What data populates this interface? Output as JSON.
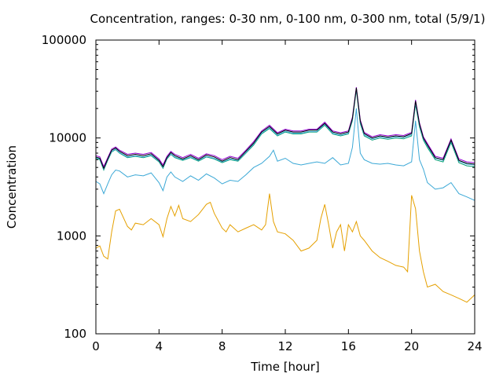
{
  "chart_data": {
    "type": "line",
    "title": "Concentration, ranges: 0-30 nm, 0-100 nm, 0-300 nm, total (5/9/1)",
    "xlabel": "Time [hour]",
    "ylabel": "Concentration",
    "xlim": [
      0,
      24
    ],
    "ylim": [
      100,
      100000
    ],
    "yscale": "log",
    "grid": false,
    "legend": "none",
    "xticks": [
      0,
      4,
      8,
      12,
      16,
      20,
      24
    ],
    "xtick_labels": [
      "0",
      "4",
      "8",
      "12",
      "16",
      "20",
      "24"
    ],
    "yticks": [
      100,
      1000,
      10000,
      100000
    ],
    "ytick_labels": [
      "100",
      "1000",
      "10000",
      "100000"
    ],
    "series": [
      {
        "color": "#e5a000",
        "x": [
          0,
          0.25,
          0.5,
          0.75,
          1.0,
          1.25,
          1.5,
          2.0,
          2.25,
          2.5,
          3.0,
          3.5,
          4.0,
          4.25,
          4.5,
          4.75,
          5.0,
          5.25,
          5.5,
          6.0,
          6.5,
          7.0,
          7.25,
          7.5,
          8.0,
          8.25,
          8.5,
          9.0,
          9.5,
          10.0,
          10.5,
          10.75,
          11.0,
          11.25,
          11.5,
          12.0,
          12.5,
          13.0,
          13.5,
          14.0,
          14.25,
          14.5,
          14.75,
          15.0,
          15.25,
          15.5,
          15.75,
          16.0,
          16.25,
          16.5,
          16.75,
          17.0,
          17.5,
          18.0,
          18.5,
          19.0,
          19.5,
          19.75,
          20.0,
          20.25,
          20.5,
          20.75,
          21.0,
          21.5,
          22.0,
          22.5,
          23.0,
          23.5,
          24.0
        ],
        "values": [
          750,
          790,
          620,
          580,
          1100,
          1800,
          1870,
          1250,
          1150,
          1350,
          1300,
          1500,
          1300,
          980,
          1500,
          2000,
          1600,
          2050,
          1500,
          1400,
          1650,
          2100,
          2200,
          1700,
          1200,
          1100,
          1300,
          1100,
          1200,
          1300,
          1150,
          1300,
          2700,
          1400,
          1100,
          1050,
          900,
          700,
          750,
          900,
          1500,
          2100,
          1300,
          750,
          1100,
          1300,
          700,
          1300,
          1100,
          1400,
          1000,
          900,
          700,
          600,
          550,
          500,
          480,
          430,
          2600,
          1900,
          700,
          430,
          300,
          320,
          270,
          250,
          230,
          210,
          250
        ]
      },
      {
        "color": "#3ba8d6",
        "x": [
          0,
          0.25,
          0.5,
          0.75,
          1.0,
          1.25,
          1.5,
          2.0,
          2.5,
          3.0,
          3.5,
          4.0,
          4.25,
          4.5,
          4.75,
          5.0,
          5.5,
          6.0,
          6.5,
          7.0,
          7.5,
          8.0,
          8.5,
          9.0,
          9.5,
          10.0,
          10.5,
          11.0,
          11.25,
          11.5,
          12.0,
          12.5,
          13.0,
          13.5,
          14.0,
          14.5,
          15.0,
          15.5,
          16.0,
          16.25,
          16.5,
          16.75,
          17.0,
          17.5,
          18.0,
          18.5,
          19.0,
          19.5,
          20.0,
          20.25,
          20.5,
          20.75,
          21.0,
          21.5,
          22.0,
          22.5,
          23.0,
          23.5,
          24.0
        ],
        "values": [
          3600,
          3400,
          2700,
          3400,
          4200,
          4700,
          4600,
          4000,
          4200,
          4100,
          4400,
          3500,
          2900,
          4000,
          4500,
          4000,
          3600,
          4100,
          3700,
          4300,
          3900,
          3400,
          3700,
          3600,
          4200,
          5000,
          5500,
          6500,
          7500,
          5800,
          6200,
          5500,
          5300,
          5500,
          5700,
          5500,
          6300,
          5300,
          5500,
          8000,
          20000,
          7000,
          6000,
          5500,
          5400,
          5500,
          5300,
          5200,
          5700,
          15000,
          6000,
          4800,
          3500,
          3000,
          3100,
          3500,
          2700,
          2500,
          2300
        ]
      },
      {
        "color": "#009e73",
        "x": [
          0,
          0.25,
          0.5,
          0.75,
          1.0,
          1.25,
          1.5,
          2.0,
          2.5,
          3.0,
          3.5,
          4.0,
          4.25,
          4.5,
          4.75,
          5.0,
          5.5,
          6.0,
          6.5,
          7.0,
          7.5,
          8.0,
          8.5,
          9.0,
          9.5,
          10.0,
          10.5,
          11.0,
          11.5,
          12.0,
          12.5,
          13.0,
          13.5,
          14.0,
          14.5,
          15.0,
          15.5,
          16.0,
          16.25,
          16.5,
          16.75,
          17.0,
          17.5,
          18.0,
          18.5,
          19.0,
          19.5,
          20.0,
          20.25,
          20.5,
          20.75,
          21.0,
          21.5,
          22.0,
          22.5,
          23.0,
          23.5,
          24.0
        ],
        "values": [
          6200,
          6000,
          4700,
          5900,
          7200,
          7600,
          7000,
          6300,
          6500,
          6300,
          6600,
          5700,
          4900,
          6100,
          6800,
          6300,
          5900,
          6300,
          5800,
          6400,
          6100,
          5600,
          6000,
          5800,
          7000,
          8500,
          11000,
          12500,
          10500,
          11500,
          11000,
          11000,
          11500,
          11500,
          13500,
          11000,
          10500,
          11000,
          15000,
          31000,
          14000,
          10500,
          9500,
          10000,
          9700,
          10000,
          9800,
          10500,
          22000,
          13000,
          9500,
          8000,
          6000,
          5700,
          9000,
          5600,
          5200,
          5100
        ]
      },
      {
        "color": "#56b4e9",
        "x": [
          0,
          0.25,
          0.5,
          0.75,
          1.0,
          1.25,
          1.5,
          2.0,
          2.5,
          3.0,
          3.5,
          4.0,
          4.25,
          4.5,
          4.75,
          5.0,
          5.5,
          6.0,
          6.5,
          7.0,
          7.5,
          8.0,
          8.5,
          9.0,
          9.5,
          10.0,
          10.5,
          11.0,
          11.5,
          12.0,
          12.5,
          13.0,
          13.5,
          14.0,
          14.5,
          15.0,
          15.5,
          16.0,
          16.25,
          16.5,
          16.75,
          17.0,
          17.5,
          18.0,
          18.5,
          19.0,
          19.5,
          20.0,
          20.25,
          20.5,
          20.75,
          21.0,
          21.5,
          22.0,
          22.5,
          23.0,
          23.5,
          24.0
        ],
        "values": [
          6300,
          6100,
          4800,
          6000,
          7300,
          7700,
          7100,
          6400,
          6600,
          6400,
          6700,
          5800,
          5000,
          6200,
          6900,
          6400,
          6000,
          6400,
          5900,
          6500,
          6200,
          5700,
          6100,
          5900,
          7100,
          8700,
          11200,
          12800,
          10700,
          11700,
          11200,
          11200,
          11700,
          11700,
          13800,
          11200,
          10700,
          11200,
          15500,
          32000,
          14500,
          10800,
          9800,
          10300,
          10000,
          10300,
          10100,
          10800,
          23000,
          13500,
          9800,
          8300,
          6200,
          5900,
          9300,
          5800,
          5400,
          5300
        ]
      },
      {
        "color": "#9400d3",
        "x": [
          0,
          0.25,
          0.5,
          0.75,
          1.0,
          1.25,
          1.5,
          2.0,
          2.5,
          3.0,
          3.5,
          4.0,
          4.25,
          4.5,
          4.75,
          5.0,
          5.5,
          6.0,
          6.5,
          7.0,
          7.5,
          8.0,
          8.5,
          9.0,
          9.5,
          10.0,
          10.5,
          11.0,
          11.5,
          12.0,
          12.5,
          13.0,
          13.5,
          14.0,
          14.5,
          15.0,
          15.5,
          16.0,
          16.25,
          16.5,
          16.75,
          17.0,
          17.5,
          18.0,
          18.5,
          19.0,
          19.5,
          20.0,
          20.25,
          20.5,
          20.75,
          21.0,
          21.5,
          22.0,
          22.5,
          23.0,
          23.5,
          24.0
        ],
        "values": [
          6600,
          6400,
          5100,
          6300,
          7700,
          8100,
          7500,
          6800,
          7000,
          6800,
          7100,
          6100,
          5300,
          6500,
          7300,
          6800,
          6300,
          6800,
          6200,
          6900,
          6600,
          6000,
          6500,
          6200,
          7500,
          9200,
          11800,
          13500,
          11300,
          12300,
          11800,
          11800,
          12300,
          12300,
          14500,
          11800,
          11300,
          11800,
          16300,
          33000,
          15300,
          11400,
          10300,
          10800,
          10500,
          10800,
          10600,
          11400,
          24500,
          14300,
          10300,
          8800,
          6500,
          6200,
          9800,
          6100,
          5700,
          5600
        ]
      },
      {
        "color": "#000000",
        "x": [
          0,
          0.25,
          0.5,
          0.75,
          1.0,
          1.25,
          1.5,
          2.0,
          2.5,
          3.0,
          3.5,
          4.0,
          4.25,
          4.5,
          4.75,
          5.0,
          5.5,
          6.0,
          6.5,
          7.0,
          7.5,
          8.0,
          8.5,
          9.0,
          9.5,
          10.0,
          10.5,
          11.0,
          11.5,
          12.0,
          12.5,
          13.0,
          13.5,
          14.0,
          14.5,
          15.0,
          15.5,
          16.0,
          16.25,
          16.5,
          16.75,
          17.0,
          17.5,
          18.0,
          18.5,
          19.0,
          19.5,
          20.0,
          20.25,
          20.5,
          20.75,
          21.0,
          21.5,
          22.0,
          22.5,
          23.0,
          23.5,
          24.0
        ],
        "values": [
          6400,
          6200,
          4900,
          6100,
          7500,
          7900,
          7300,
          6600,
          6800,
          6600,
          6900,
          5900,
          5100,
          6300,
          7100,
          6600,
          6100,
          6600,
          6000,
          6700,
          6400,
          5800,
          6300,
          6000,
          7300,
          8900,
          11500,
          13100,
          11000,
          12000,
          11500,
          11500,
          12000,
          12000,
          14100,
          11500,
          11000,
          11500,
          15800,
          32500,
          14900,
          11100,
          10000,
          10500,
          10200,
          10500,
          10300,
          11100,
          23800,
          13900,
          10000,
          8500,
          6300,
          6000,
          9500,
          5900,
          5500,
          5400
        ]
      }
    ]
  }
}
